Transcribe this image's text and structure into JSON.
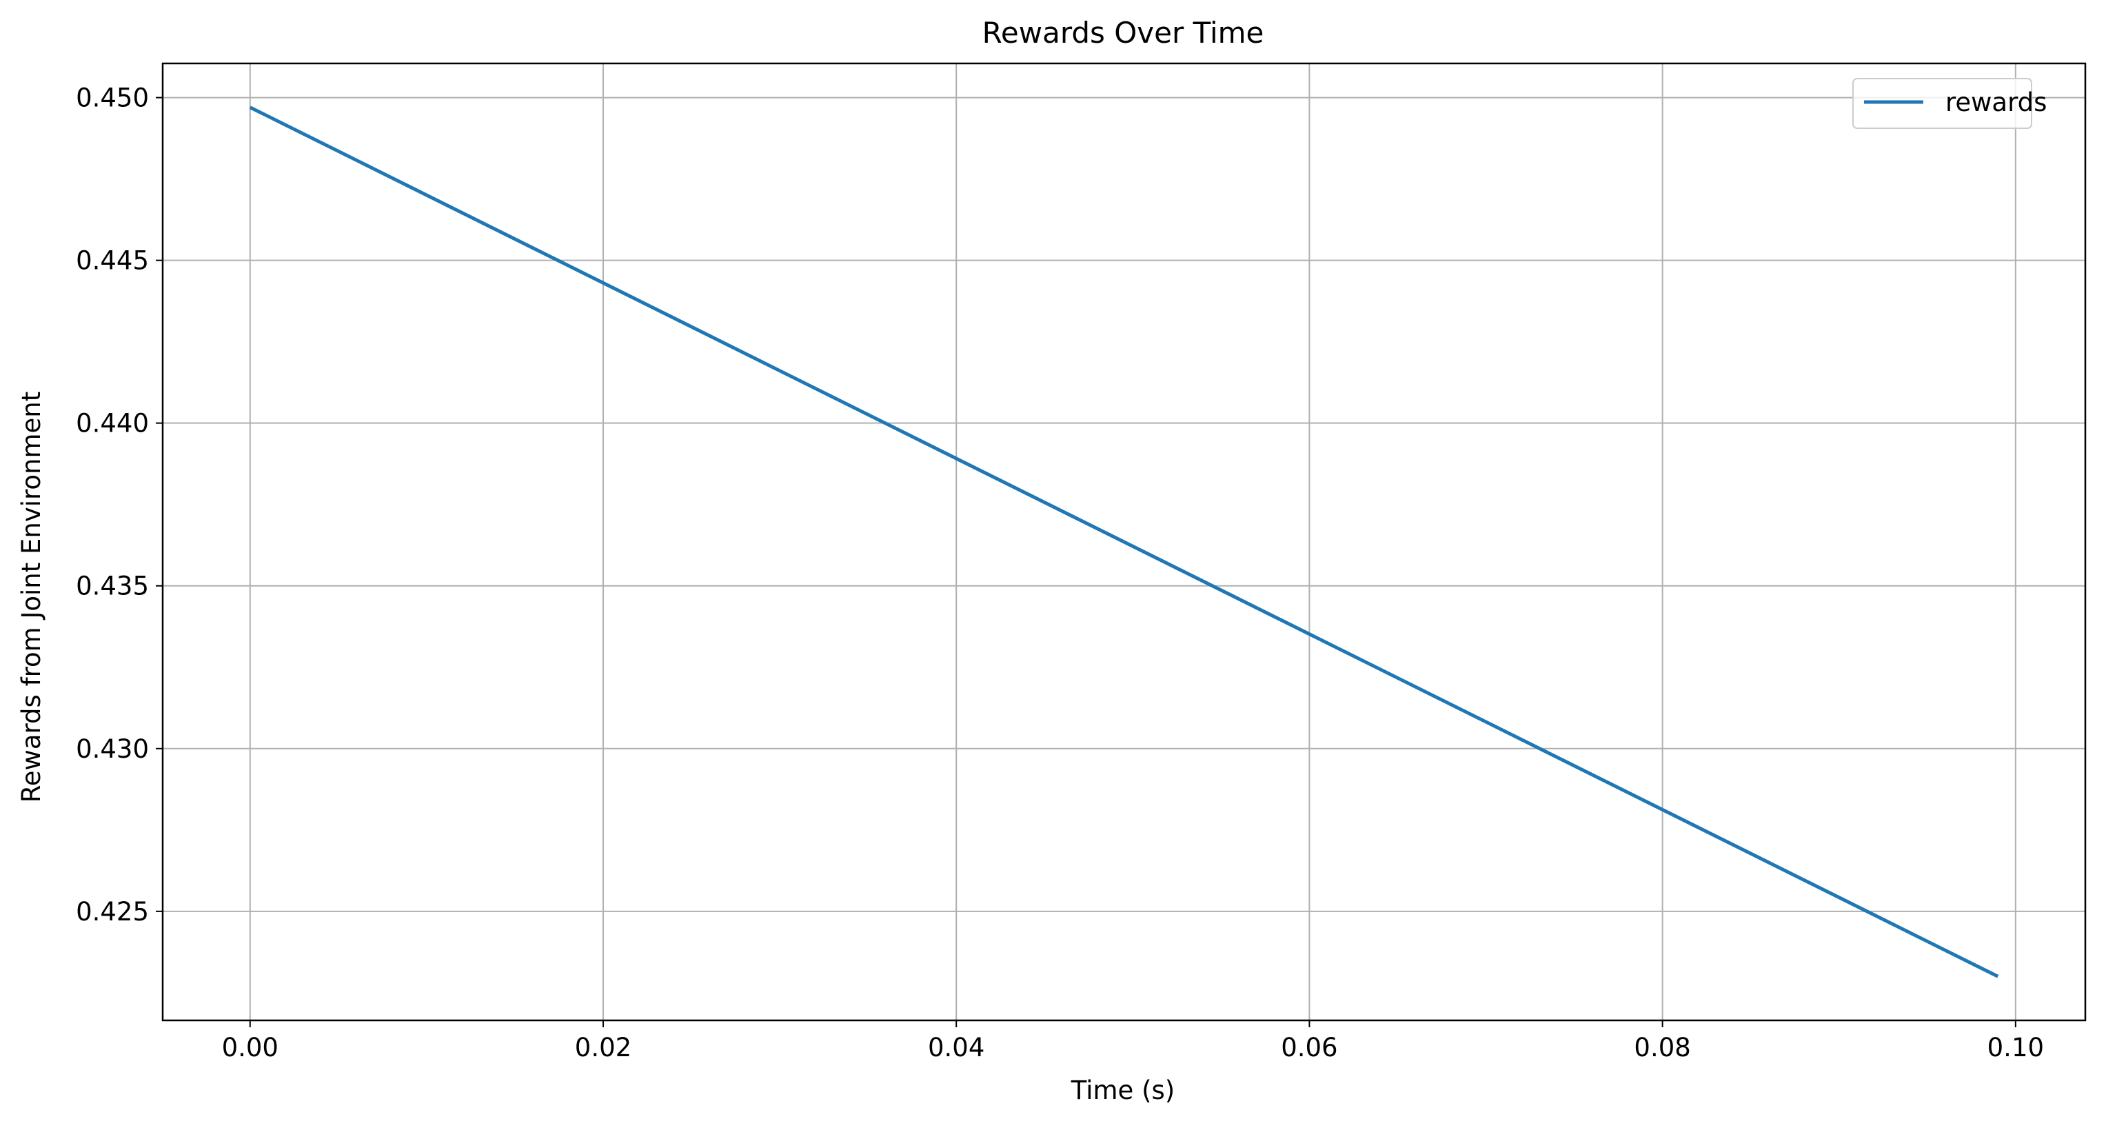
{
  "chart_data": {
    "type": "line",
    "title": "Rewards Over Time",
    "xlabel": "Time (s)",
    "ylabel": "Rewards from Joint Environment",
    "xlim": [
      -0.00495,
      0.10395
    ],
    "ylim": [
      0.42165,
      0.45105
    ],
    "xticks": [
      0.0,
      0.02,
      0.04,
      0.06,
      0.08,
      0.1
    ],
    "xtick_labels": [
      "0.00",
      "0.02",
      "0.04",
      "0.06",
      "0.08",
      "0.10"
    ],
    "yticks": [
      0.425,
      0.43,
      0.435,
      0.44,
      0.445,
      0.45
    ],
    "ytick_labels": [
      "0.425",
      "0.430",
      "0.435",
      "0.440",
      "0.445",
      "0.450"
    ],
    "grid": true,
    "legend": {
      "placement": "upper-right"
    },
    "series": [
      {
        "name": "rewards",
        "color": "#1f77b4",
        "x": [
          0.0,
          0.099
        ],
        "y": [
          0.4497,
          0.423
        ]
      }
    ]
  }
}
